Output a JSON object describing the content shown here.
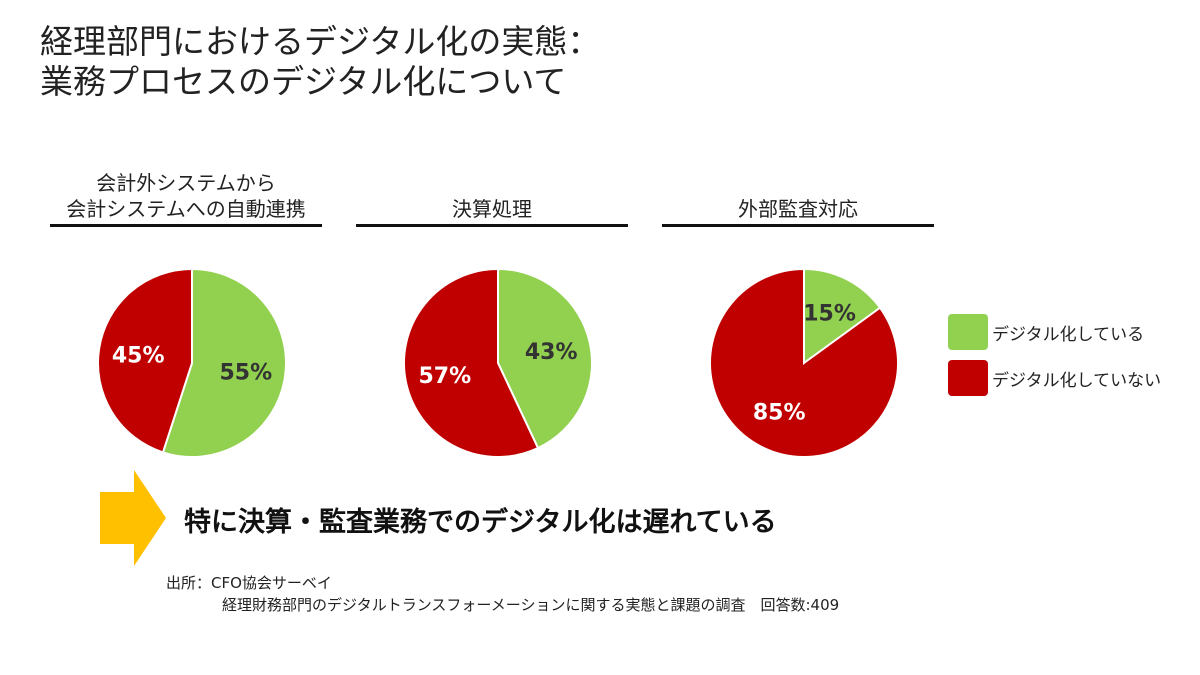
{
  "title": {
    "line1": "経理部門におけるデジタル化の実態：",
    "line2": "業務プロセスのデジタル化について"
  },
  "colors": {
    "digital": "#92d050",
    "not_digital": "#c00000",
    "arrow": "#ffc000",
    "pie_border": "#ffffff"
  },
  "chart_data": [
    {
      "type": "pie",
      "title_lines": [
        "会計外システムから",
        "会計システムへの自動連携"
      ],
      "slices": [
        {
          "label": "デジタル化している",
          "value": 55,
          "display": "55%"
        },
        {
          "label": "デジタル化していない",
          "value": 45,
          "display": "45%"
        }
      ]
    },
    {
      "type": "pie",
      "title_lines": [
        "決算処理"
      ],
      "slices": [
        {
          "label": "デジタル化している",
          "value": 43,
          "display": "43%"
        },
        {
          "label": "デジタル化していない",
          "value": 57,
          "display": "57%"
        }
      ]
    },
    {
      "type": "pie",
      "title_lines": [
        "外部監査対応"
      ],
      "slices": [
        {
          "label": "デジタル化している",
          "value": 15,
          "display": "15%"
        },
        {
          "label": "デジタル化していない",
          "value": 85,
          "display": "85%"
        }
      ]
    }
  ],
  "legend": [
    {
      "label": "デジタル化している",
      "color": "#92d050"
    },
    {
      "label": "デジタル化していない",
      "color": "#c00000"
    }
  ],
  "callout": {
    "text": "特に決算・監査業務でのデジタル化は遅れている"
  },
  "source": {
    "line1": "出所：CFO協会サーベイ",
    "line2": "経理財務部門のデジタルトランスフォーメーションに関する実態と課題の調査　回答数:409"
  }
}
